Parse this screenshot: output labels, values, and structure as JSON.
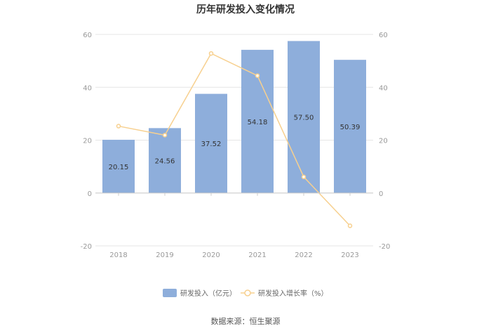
{
  "chart_data": {
    "type": "bar",
    "title": "历年研发投入变化情况",
    "categories": [
      "2018",
      "2019",
      "2020",
      "2021",
      "2022",
      "2023"
    ],
    "series": [
      {
        "name": "研发投入（亿元）",
        "type": "bar",
        "axis": "left",
        "values": [
          20.15,
          24.56,
          37.52,
          54.18,
          57.5,
          50.39
        ],
        "labels": [
          "20.15",
          "24.56",
          "37.52",
          "54.18",
          "57.50",
          "50.39"
        ],
        "color": "#8eaedb"
      },
      {
        "name": "研发投入增长率（%）",
        "type": "line",
        "axis": "right",
        "values": [
          25.3,
          21.9,
          52.8,
          44.4,
          6.1,
          -12.4
        ],
        "color": "#f7d08f"
      }
    ],
    "ylim_left": [
      -20,
      60
    ],
    "ylim_right": [
      -20,
      60
    ],
    "yticks": [
      "60",
      "40",
      "20",
      "0",
      "-20"
    ],
    "grid": true,
    "legend": "bottom"
  },
  "source": "数据来源：恒生聚源"
}
